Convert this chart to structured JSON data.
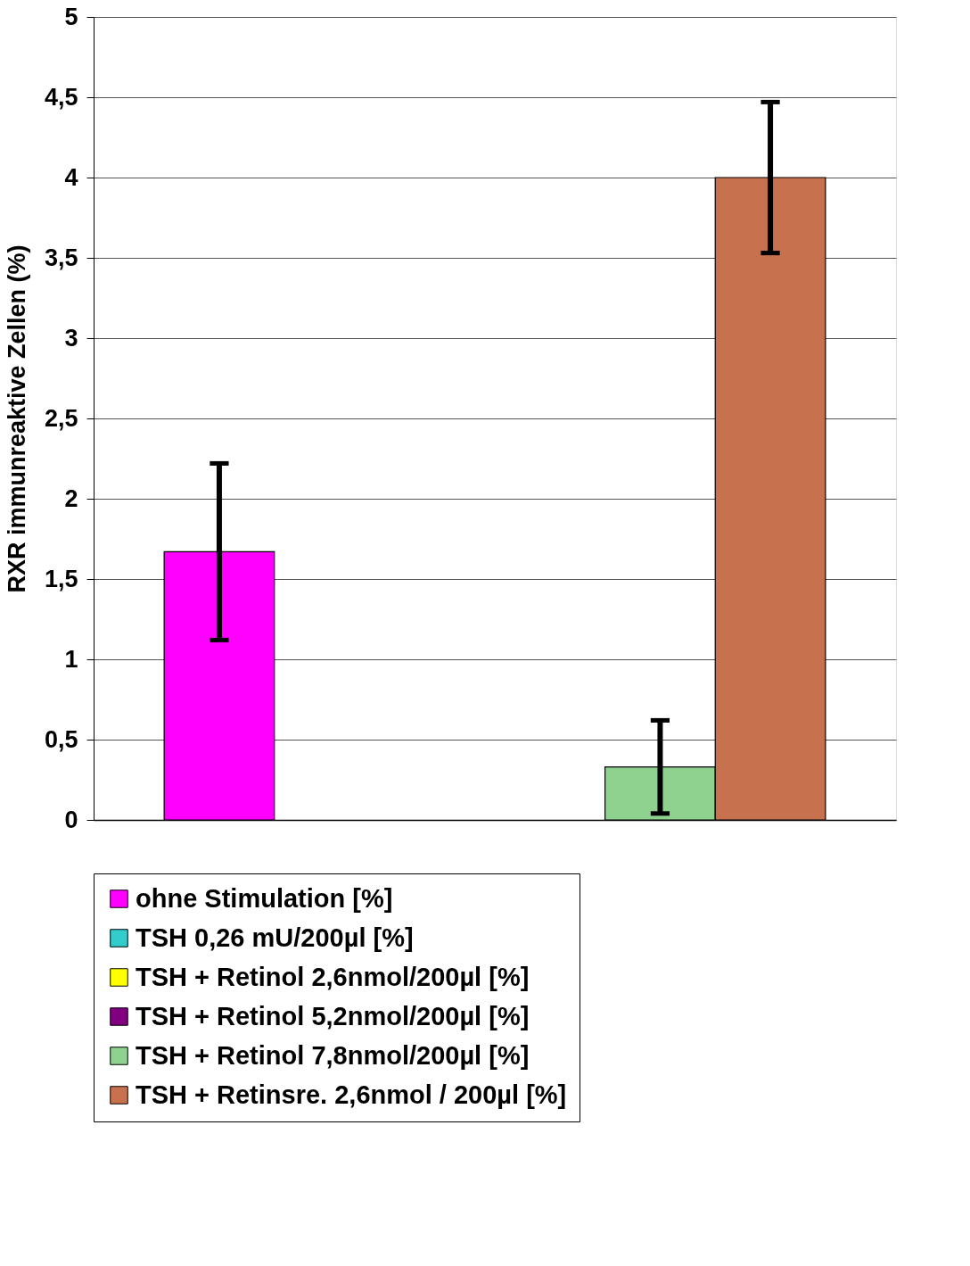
{
  "chart_data": {
    "type": "bar",
    "ylabel": "RXR immunreaktive Zellen (%)",
    "categories": [
      null
    ],
    "series": [
      {
        "name": "ohne Stimulation [%]",
        "color": "#ff00ff",
        "values": [
          1.67
        ],
        "errors": [
          0.55
        ]
      },
      {
        "name": "TSH 0,26 mU/200µl [%]",
        "color": "#33cccc",
        "values": [
          null
        ]
      },
      {
        "name": "TSH + Retinol 2,6nmol/200µl [%]",
        "color": "#ffff00",
        "values": [
          null
        ]
      },
      {
        "name": "TSH + Retinol 5,2nmol/200µl [%]",
        "color": "#800080",
        "values": [
          null
        ]
      },
      {
        "name": "TSH + Retinol 7,8nmol/200µl [%]",
        "color": "#8fd18f",
        "values": [
          0.33
        ],
        "errors": [
          0.29
        ]
      },
      {
        "name": "TSH + Retinsre. 2,6nmol / 200µl [%]",
        "color": "#c8714f",
        "values": [
          4.0
        ],
        "errors": [
          0.47
        ]
      }
    ],
    "ylim": [
      0,
      5
    ],
    "yticks": [
      0,
      {
        "value": 0.5,
        "label": "0,5"
      },
      1,
      {
        "value": 1.5,
        "label": "1,5"
      },
      2,
      {
        "value": 2.5,
        "label": "2,5"
      },
      3,
      {
        "value": 3.5,
        "label": "3,5"
      },
      4,
      {
        "value": 4.5,
        "label": "4,5"
      },
      5
    ],
    "grid": "y",
    "legend": "bottom"
  }
}
